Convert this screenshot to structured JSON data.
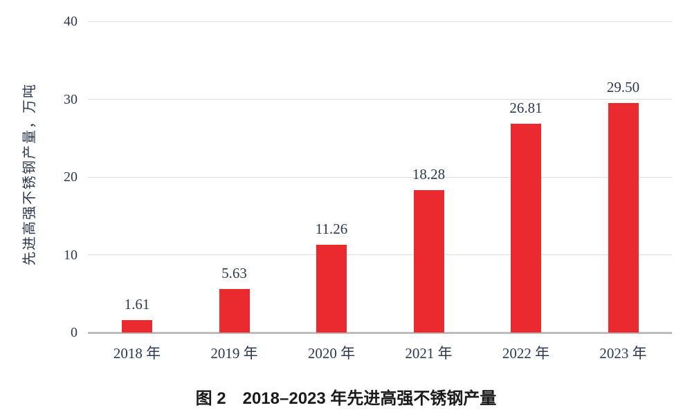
{
  "figure": {
    "caption": "图 2　2018–2023 年先进高强不锈钢产量"
  },
  "chart_data": {
    "type": "bar",
    "title": "图 2　2018–2023 年先进高强不锈钢产量",
    "ylabel": "先进高强不锈钢产量，万吨",
    "xlabel": "",
    "categories": [
      "2018 年",
      "2019 年",
      "2020 年",
      "2021 年",
      "2022 年",
      "2023 年"
    ],
    "values": [
      1.61,
      5.63,
      11.26,
      18.28,
      26.81,
      29.5
    ],
    "data_labels": [
      "1.61",
      "5.63",
      "11.26",
      "18.28",
      "26.81",
      "29.50"
    ],
    "ylim": [
      0,
      40
    ],
    "yticks": [
      0,
      10,
      20,
      30,
      40
    ],
    "grid": true,
    "legend_position": "none",
    "bar_color": "#ea2a2e",
    "label_color": "#2c3850",
    "gridline_color": "#dcdcdc",
    "axisline_color": "#bcbcbc"
  }
}
